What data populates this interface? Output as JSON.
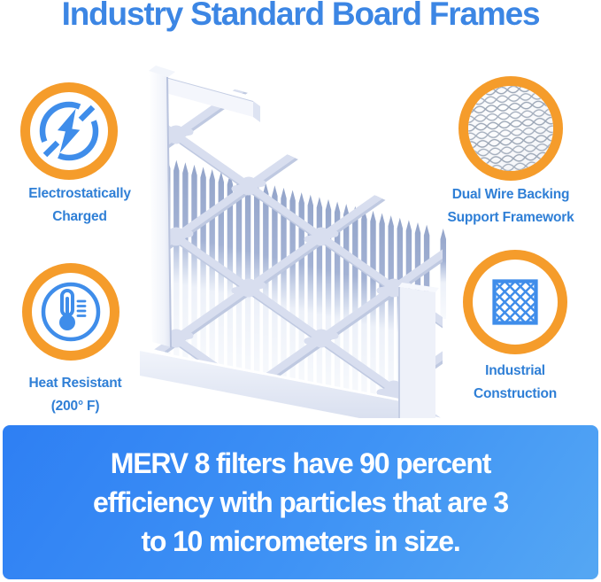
{
  "title": "Industry Standard Board Frames",
  "features": [
    {
      "icon": "lightning-icon",
      "line1": "Electrostatically",
      "line2": "Charged"
    },
    {
      "icon": "wire-mesh-icon",
      "line1": "Dual Wire Backing",
      "line2": "Support Framework"
    },
    {
      "icon": "thermometer-icon",
      "line1": "Heat Resistant",
      "line2": "(200° F)"
    },
    {
      "icon": "diamond-lattice-icon",
      "line1": "Industrial",
      "line2": "Construction"
    }
  ],
  "banner": {
    "line1": "MERV 8 filters have 90 percent",
    "line2": "efficiency with particles that are 3",
    "line3": "to 10 micrometers in size."
  },
  "illustration": {
    "name": "pleated-air-filter-with-board-frame"
  },
  "colors": {
    "title_blue": "#3c86e4",
    "label_blue": "#2f7fd6",
    "icon_blue": "#3f8dea",
    "ring_orange": "#f59c2b",
    "banner_gradient_start": "#2e7ff3",
    "banner_gradient_end": "#55a7f3",
    "banner_text": "#ffffff",
    "filter_light": "#eef1f9",
    "filter_shade": "#9fafd2"
  }
}
